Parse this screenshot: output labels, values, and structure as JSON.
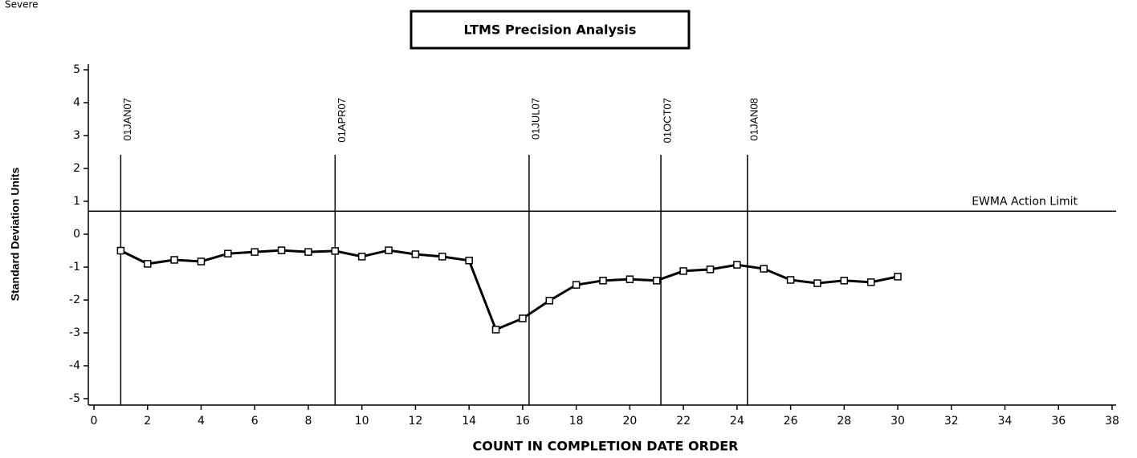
{
  "chart_data": {
    "type": "line",
    "subtitle": "Severe",
    "title": "LTMS Precision Analysis",
    "xlabel": "COUNT IN COMPLETION DATE ORDER",
    "ylabel": "Standard Deviation Units",
    "x": [
      1,
      2,
      3,
      4,
      5,
      6,
      7,
      8,
      9,
      10,
      11,
      12,
      13,
      14,
      15,
      16,
      17,
      18,
      19,
      20,
      21,
      22,
      23,
      24,
      25,
      26,
      27,
      28,
      29,
      30
    ],
    "series": [
      {
        "color": "#000000",
        "values": [
          -0.5,
          -0.9,
          -0.78,
          -0.83,
          -0.59,
          -0.54,
          -0.49,
          -0.54,
          -0.51,
          -0.68,
          -0.49,
          -0.61,
          -0.68,
          -0.8,
          -2.9,
          -2.56,
          -2.02,
          -1.54,
          -1.41,
          -1.37,
          -1.41,
          -1.12,
          -1.07,
          -0.93,
          -1.05,
          -1.39,
          -1.49,
          -1.41,
          -1.46,
          -1.29
        ]
      }
    ],
    "xlim": [
      0,
      38
    ],
    "xticks": [
      0,
      2,
      4,
      6,
      8,
      10,
      12,
      14,
      16,
      18,
      20,
      22,
      24,
      26,
      28,
      30,
      32,
      34,
      36,
      38
    ],
    "ylim": [
      -5,
      5
    ],
    "yticks": [
      -5,
      -4,
      -3,
      -2,
      -1,
      0,
      1,
      2,
      3,
      4,
      5
    ],
    "reference_lines": [
      {
        "x": 1,
        "label": "01JAN07"
      },
      {
        "x": 9,
        "label": "01APR07"
      },
      {
        "x": 16.24,
        "label": "01JUL07"
      },
      {
        "x": 21.16,
        "label": "01OCT07"
      },
      {
        "x": 24.39,
        "label": "01JAN08"
      }
    ],
    "action_limit": {
      "value": 0.7,
      "label": "EWMA Action Limit"
    }
  }
}
